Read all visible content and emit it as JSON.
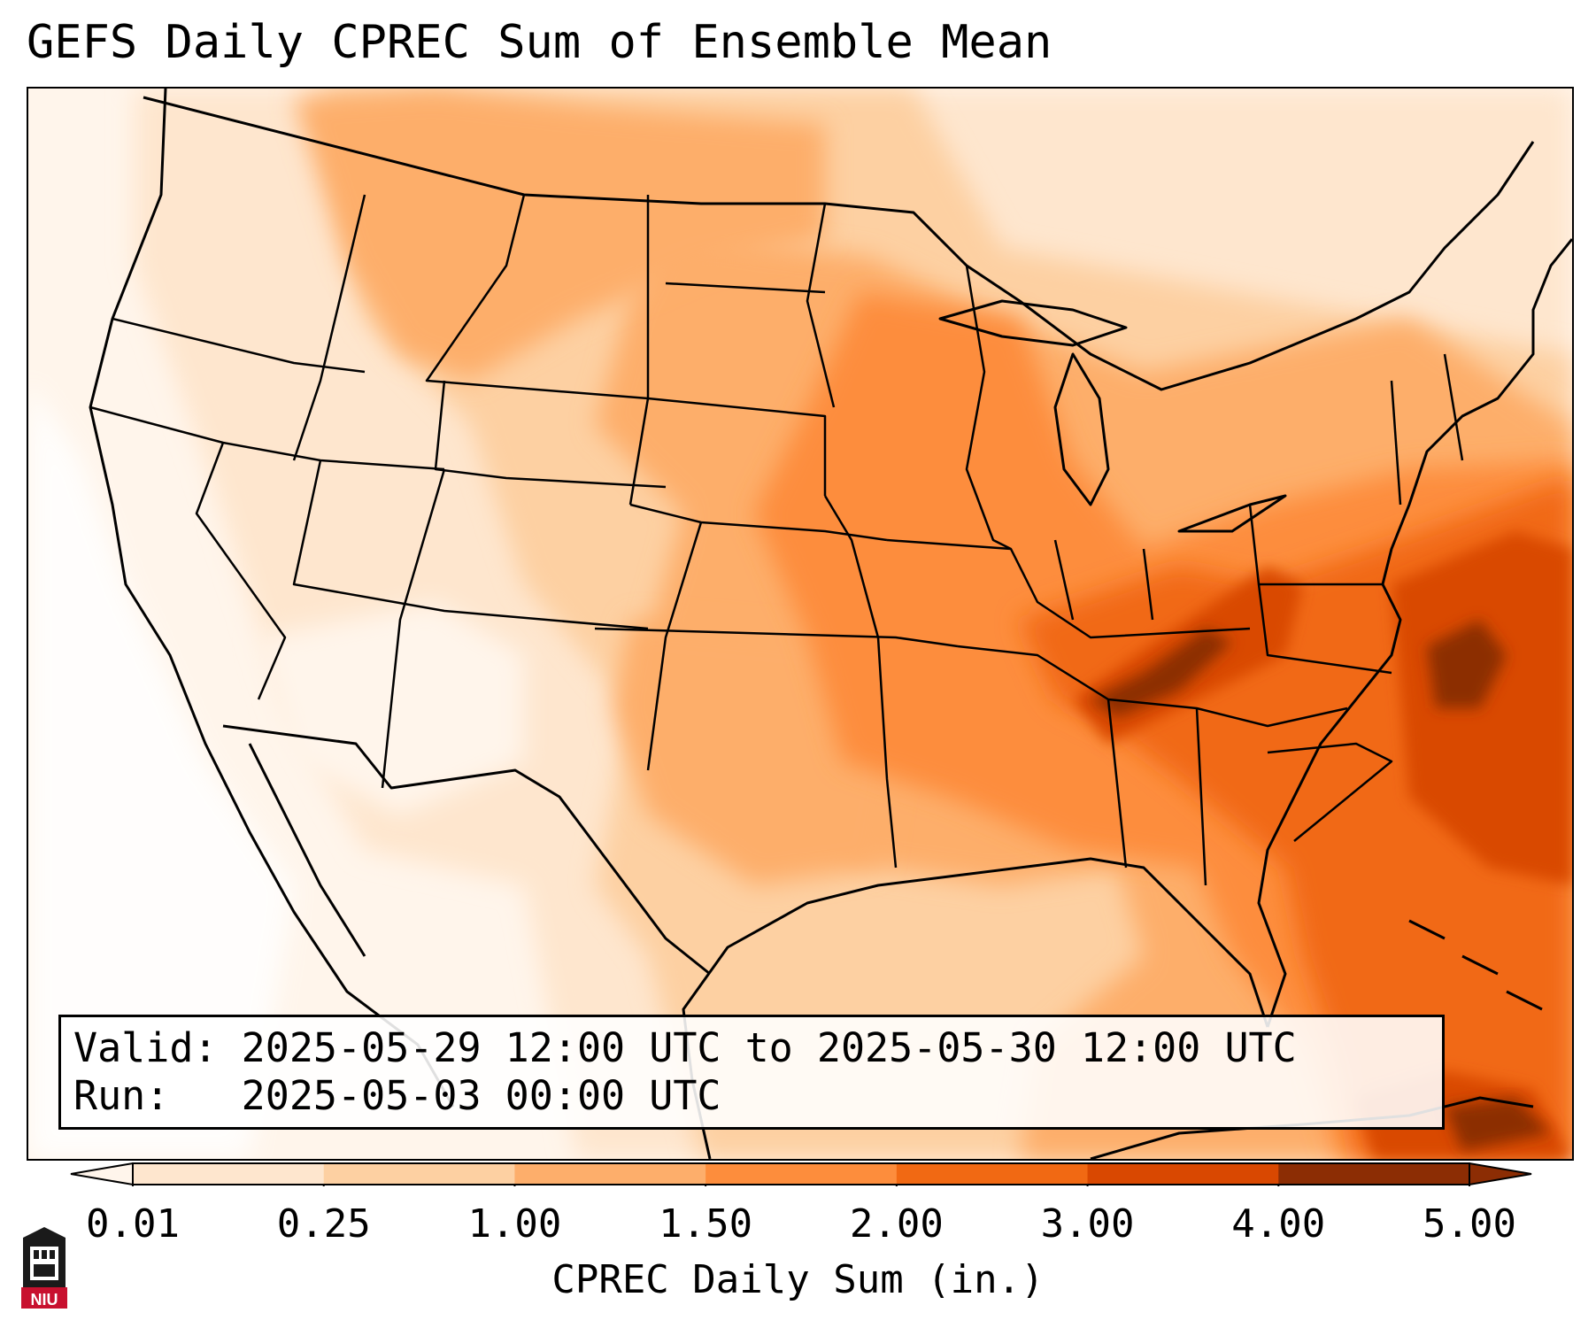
{
  "title": "GEFS Daily CPREC Sum of Ensemble Mean",
  "info": {
    "valid_label": "Valid:",
    "valid_value": "2025-05-29 12:00 UTC to 2025-05-30 12:00 UTC",
    "run_label": "Run:",
    "run_value": "2025-05-03 00:00 UTC"
  },
  "colorbar": {
    "label": "CPREC Daily Sum (in.)",
    "ticks": [
      "0.01",
      "0.25",
      "1.00",
      "1.50",
      "2.00",
      "3.00",
      "4.00",
      "5.00"
    ],
    "colors": [
      "#fff5eb",
      "#fee6ce",
      "#fdd0a2",
      "#fdae6b",
      "#fd8d3c",
      "#f16913",
      "#d94801",
      "#8c2d04"
    ],
    "extend": "both"
  },
  "logo": {
    "text": "NIU",
    "icon": "niu-logo-icon"
  },
  "map": {
    "region": "Contiguous United States",
    "field_colors": {
      "lightest": "#fff5eb",
      "light": "#fee6ce",
      "pale": "#fdd0a2",
      "medium": "#fdae6b",
      "orange": "#fd8d3c",
      "dark_orange": "#f16913",
      "deep": "#d94801",
      "darkest": "#8c2d04"
    }
  }
}
